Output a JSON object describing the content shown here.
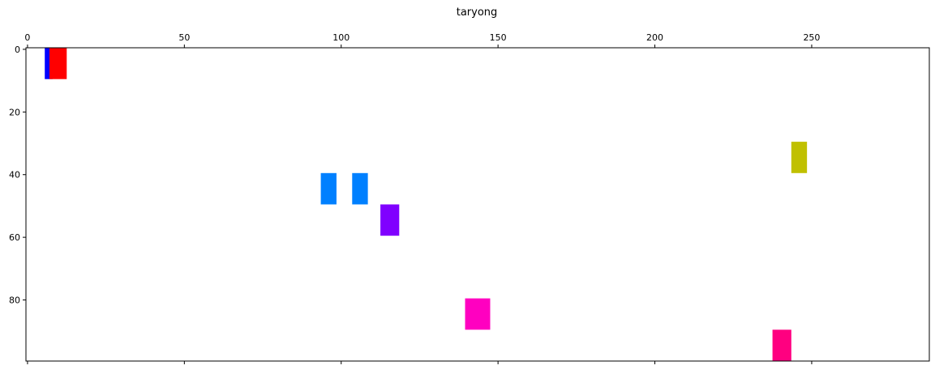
{
  "chart_data": {
    "type": "heatmap",
    "title": "taryong",
    "xlabel": "",
    "ylabel": "",
    "xlim": [
      -0.5,
      287.5
    ],
    "ylim": [
      99.5,
      -0.5
    ],
    "x_axis_position": "top",
    "y_inverted": true,
    "grid": false,
    "x_ticks": [
      0,
      50,
      100,
      150,
      200,
      250
    ],
    "x_tick_labels": [
      "0",
      "50",
      "100",
      "150",
      "200",
      "250"
    ],
    "y_ticks": [
      0,
      20,
      40,
      60,
      80
    ],
    "y_tick_labels": [
      "0",
      "20",
      "40",
      "60",
      "80"
    ],
    "rectangles": [
      {
        "x_start": 6,
        "x_end": 7.5,
        "y_start": 0,
        "y_end": 9,
        "color": "#0000ff"
      },
      {
        "x_start": 7.5,
        "x_end": 12,
        "y_start": 0,
        "y_end": 9,
        "color": "#ff0000"
      },
      {
        "x_start": 94,
        "x_end": 98,
        "y_start": 40,
        "y_end": 49,
        "color": "#0080ff"
      },
      {
        "x_start": 104,
        "x_end": 108,
        "y_start": 40,
        "y_end": 49,
        "color": "#0080ff"
      },
      {
        "x_start": 113,
        "x_end": 118,
        "y_start": 50,
        "y_end": 59,
        "color": "#8000ff"
      },
      {
        "x_start": 140,
        "x_end": 147,
        "y_start": 80,
        "y_end": 89,
        "color": "#ff00c0"
      },
      {
        "x_start": 238,
        "x_end": 243,
        "y_start": 90,
        "y_end": 99,
        "color": "#ff0080"
      },
      {
        "x_start": 244,
        "x_end": 248,
        "y_start": 30,
        "y_end": 39,
        "color": "#c0c000"
      }
    ]
  }
}
